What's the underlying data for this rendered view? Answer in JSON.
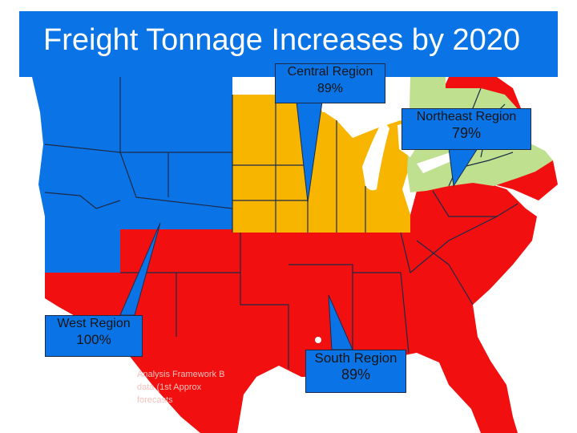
{
  "title": "Freight Tonnage Increases by 2020",
  "colors": {
    "title_bar": "#0a74e6",
    "west_region": "#0a74e6",
    "central_region": "#f7b500",
    "northeast_region": "#bfe08f",
    "south_region": "#f20f0f",
    "state_borders": "#1c2a48"
  },
  "regions": {
    "central": {
      "name": "Central Region",
      "pct": "89%"
    },
    "northeast": {
      "name": "Northeast Region",
      "pct": "79%"
    },
    "west": {
      "name": "West Region",
      "pct": "100%"
    },
    "south": {
      "name": "South Region",
      "pct": "89%"
    }
  },
  "source_note": {
    "line1": "Analysis Framework B",
    "line2": "data (1st Approx",
    "line3": "forecasts"
  }
}
